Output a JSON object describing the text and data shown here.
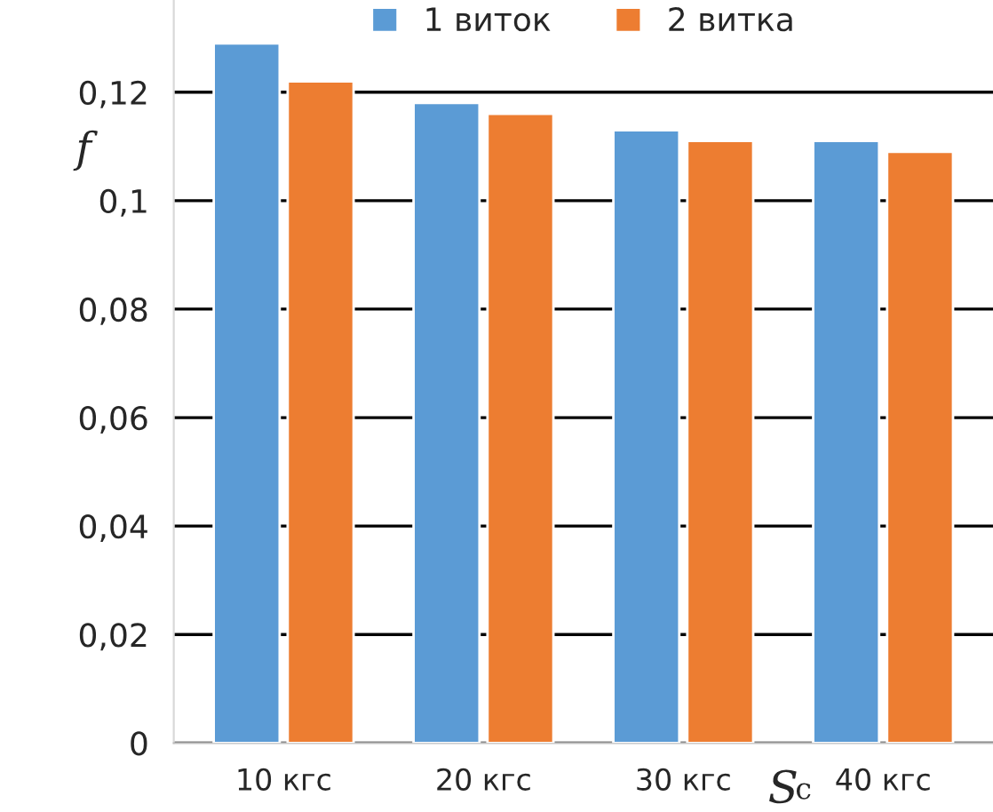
{
  "chart_data": {
    "type": "bar",
    "xlabel": "Sc",
    "ylabel": "f",
    "categories": [
      "10 кгс",
      "20 кгс",
      "30 кгс",
      "40 кгс"
    ],
    "series": [
      {
        "name": "1 виток",
        "color": "#5b9bd5",
        "values": [
          0.129,
          0.118,
          0.113,
          0.111
        ]
      },
      {
        "name": "2 витка",
        "color": "#ed7d31",
        "values": [
          0.122,
          0.116,
          0.111,
          0.109
        ]
      }
    ],
    "ylim": [
      0,
      0.137
    ],
    "yticks": [
      {
        "value": 0,
        "label": "0"
      },
      {
        "value": 0.02,
        "label": "0,02"
      },
      {
        "value": 0.04,
        "label": "0,04"
      },
      {
        "value": 0.06,
        "label": "0,06"
      },
      {
        "value": 0.08,
        "label": "0,08"
      },
      {
        "value": 0.1,
        "label": "0,1"
      },
      {
        "value": 0.12,
        "label": "0,12"
      }
    ],
    "grid": "y",
    "legend": "top"
  }
}
